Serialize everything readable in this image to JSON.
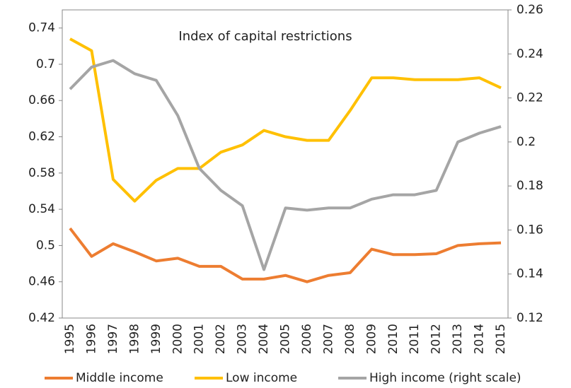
{
  "chart_data": {
    "type": "line",
    "title": "Index of capital restrictions",
    "categories": [
      "1995",
      "1996",
      "1997",
      "1998",
      "1999",
      "2000",
      "2001",
      "2002",
      "2003",
      "2004",
      "2005",
      "2006",
      "2007",
      "2008",
      "2009",
      "2010",
      "2011",
      "2012",
      "2013",
      "2014",
      "2015"
    ],
    "series": [
      {
        "name": "Middle income",
        "color": "#ED7D31",
        "axis": "y",
        "values": [
          0.519,
          0.488,
          0.502,
          0.493,
          0.483,
          0.486,
          0.477,
          0.477,
          0.463,
          0.463,
          0.467,
          0.46,
          0.467,
          0.47,
          0.496,
          0.49,
          0.49,
          0.491,
          0.5,
          0.502,
          0.503
        ]
      },
      {
        "name": "Low income",
        "color": "#FFC000",
        "axis": "y",
        "values": [
          0.728,
          0.715,
          0.573,
          0.549,
          0.572,
          0.585,
          0.585,
          0.603,
          0.611,
          0.627,
          0.62,
          0.616,
          0.616,
          0.649,
          0.685,
          0.685,
          0.683,
          0.683,
          0.683,
          0.685,
          0.674
        ]
      },
      {
        "name": "High income (right scale)",
        "color": "#A5A5A5",
        "axis": "y2",
        "values": [
          0.224,
          0.234,
          0.237,
          0.231,
          0.228,
          0.212,
          0.188,
          0.178,
          0.171,
          0.142,
          0.17,
          0.169,
          0.17,
          0.17,
          0.174,
          0.176,
          0.176,
          0.178,
          0.2,
          0.204,
          0.207
        ]
      }
    ],
    "ylim": [
      0.42,
      0.76
    ],
    "yticks": [
      0.42,
      0.46,
      0.5,
      0.54,
      0.58,
      0.62,
      0.66,
      0.7,
      0.74
    ],
    "y2lim": [
      0.12,
      0.26
    ],
    "y2ticks": [
      0.12,
      0.14,
      0.16,
      0.18,
      0.2,
      0.22,
      0.24,
      0.26
    ],
    "grid": false,
    "legend": "bottom"
  }
}
